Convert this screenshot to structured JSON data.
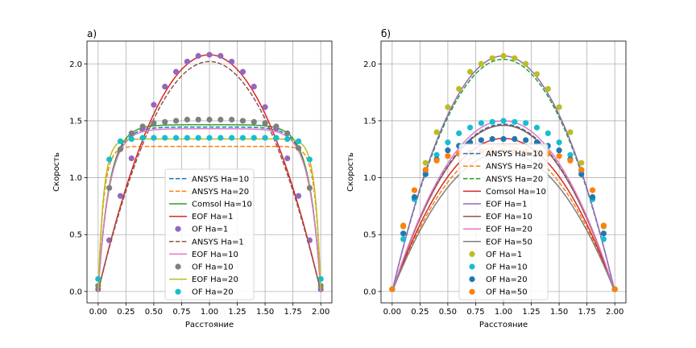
{
  "chart_data": [
    {
      "type": "line",
      "title": "а)",
      "xlabel": "Расстояние",
      "ylabel": "Скорость",
      "xlim": [
        -0.1,
        2.1
      ],
      "ylim": [
        -0.1,
        2.2
      ],
      "xticks": [
        0.0,
        0.25,
        0.5,
        0.75,
        1.0,
        1.25,
        1.5,
        1.75,
        2.0
      ],
      "xtick_labels": [
        "0.00",
        "0.25",
        "0.50",
        "0.75",
        "1.00",
        "1.25",
        "1.50",
        "1.75",
        "2.00"
      ],
      "yticks": [
        0.0,
        0.5,
        1.0,
        1.5,
        2.0
      ],
      "ytick_labels": [
        "0.0",
        "0.5",
        "1.0",
        "1.5",
        "2.0"
      ],
      "grid": true,
      "legend_position": "lower-center",
      "series": [
        {
          "name": "ANSYS Ha=10",
          "style": "dashed",
          "color": "#1f77b4",
          "profile": {
            "kind": "hartmann",
            "ha": 10,
            "umax": 1.445
          }
        },
        {
          "name": "ANSYS Ha=20",
          "style": "dashed",
          "color": "#ff7f0e",
          "profile": {
            "kind": "hartmann",
            "ha": 20,
            "umax": 1.275
          }
        },
        {
          "name": "Comsol Ha=10",
          "style": "solid",
          "color": "#2ca02c",
          "profile": {
            "kind": "hartmann",
            "ha": 10,
            "umax": 1.465
          }
        },
        {
          "name": "EOF Ha=1",
          "style": "solid",
          "color": "#d62728",
          "profile": {
            "kind": "parabola",
            "umax": 2.08
          }
        },
        {
          "name": "OF Ha=1",
          "style": "marker",
          "color": "#9467bd",
          "x": [
            0.0,
            0.1,
            0.2,
            0.3,
            0.4,
            0.5,
            0.6,
            0.7,
            0.8,
            0.9,
            1.0,
            1.1,
            1.2,
            1.3,
            1.4,
            1.5,
            1.6,
            1.7,
            1.8,
            1.9,
            2.0
          ],
          "y": [
            0.02,
            0.45,
            0.84,
            1.17,
            1.43,
            1.64,
            1.8,
            1.93,
            2.02,
            2.07,
            2.08,
            2.07,
            2.02,
            1.93,
            1.8,
            1.62,
            1.43,
            1.17,
            0.84,
            0.45,
            0.02
          ]
        },
        {
          "name": "ANSYS Ha=1",
          "style": "dashed",
          "color": "#8c564b",
          "profile": {
            "kind": "parabola",
            "umax": 2.02
          }
        },
        {
          "name": "EOF Ha=10",
          "style": "solid",
          "color": "#e377c2",
          "profile": {
            "kind": "hartmann",
            "ha": 10,
            "umax": 1.43
          }
        },
        {
          "name": "OF Ha=10",
          "style": "marker",
          "color": "#7f7f7f",
          "x": [
            0.0,
            0.1,
            0.2,
            0.3,
            0.4,
            0.5,
            0.6,
            0.7,
            0.8,
            0.9,
            1.0,
            1.1,
            1.2,
            1.3,
            1.4,
            1.5,
            1.6,
            1.7,
            1.8,
            1.9,
            2.0
          ],
          "y": [
            0.05,
            0.91,
            1.25,
            1.39,
            1.45,
            1.48,
            1.49,
            1.5,
            1.51,
            1.51,
            1.51,
            1.51,
            1.51,
            1.5,
            1.49,
            1.48,
            1.45,
            1.39,
            1.26,
            0.91,
            0.05
          ]
        },
        {
          "name": "EOF Ha=20",
          "style": "solid",
          "color": "#bcbd22",
          "profile": {
            "kind": "hartmann",
            "ha": 20,
            "umax": 1.34
          }
        },
        {
          "name": "OF Ha=20",
          "style": "marker",
          "color": "#17becf",
          "x": [
            0.0,
            0.1,
            0.2,
            0.3,
            0.4,
            0.5,
            0.6,
            0.7,
            0.8,
            0.9,
            1.0,
            1.1,
            1.2,
            1.3,
            1.4,
            1.5,
            1.6,
            1.7,
            1.8,
            1.9,
            2.0
          ],
          "y": [
            0.11,
            1.16,
            1.32,
            1.34,
            1.35,
            1.35,
            1.35,
            1.35,
            1.35,
            1.35,
            1.35,
            1.35,
            1.35,
            1.35,
            1.35,
            1.35,
            1.35,
            1.34,
            1.32,
            1.16,
            0.11
          ]
        }
      ]
    },
    {
      "type": "line",
      "title": "б)",
      "xlabel": "Расстояние",
      "ylabel": "Скорость",
      "xlim": [
        -0.1,
        2.1
      ],
      "ylim": [
        -0.1,
        2.2
      ],
      "xticks": [
        0.0,
        0.25,
        0.5,
        0.75,
        1.0,
        1.25,
        1.5,
        1.75,
        2.0
      ],
      "xtick_labels": [
        "0.00",
        "0.25",
        "0.50",
        "0.75",
        "1.00",
        "1.25",
        "1.50",
        "1.75",
        "2.00"
      ],
      "yticks": [
        0.0,
        0.5,
        1.0,
        1.5,
        2.0
      ],
      "ytick_labels": [
        "0.0",
        "0.5",
        "1.0",
        "1.5",
        "2.0"
      ],
      "grid": true,
      "legend_position": "lower-center",
      "series": [
        {
          "name": "ANSYS Ha=10",
          "style": "dashed",
          "color": "#1f77b4",
          "profile": {
            "kind": "parabola",
            "umax": 1.47
          }
        },
        {
          "name": "ANSYS Ha=20",
          "style": "dashed",
          "color": "#ff7f0e",
          "profile": {
            "kind": "parabola",
            "umax": 1.28
          }
        },
        {
          "name": "ANSYS Ha=20",
          "style": "dashed",
          "color": "#2ca02c",
          "profile": {
            "kind": "parabola",
            "umax": 2.04
          }
        },
        {
          "name": "Comsol Ha=10",
          "style": "solid",
          "color": "#d62728",
          "profile": {
            "kind": "parabola",
            "umax": 1.345
          }
        },
        {
          "name": "EOF Ha=1",
          "style": "solid",
          "color": "#9467bd",
          "profile": {
            "kind": "parabola",
            "umax": 2.07
          }
        },
        {
          "name": "EOF Ha=10",
          "style": "solid",
          "color": "#8c564b",
          "profile": {
            "kind": "parabola",
            "umax": 1.46
          }
        },
        {
          "name": "EOF Ha=20",
          "style": "solid",
          "color": "#e377c2",
          "profile": {
            "kind": "parabola",
            "umax": 1.5
          }
        },
        {
          "name": "EOF Ha=50",
          "style": "solid",
          "color": "#7f7f7f",
          "profile": {
            "kind": "parabola",
            "umax": 1.22
          }
        },
        {
          "name": "OF Ha=1",
          "style": "marker",
          "color": "#bcbd22",
          "x": [
            0.0,
            0.1,
            0.2,
            0.3,
            0.4,
            0.5,
            0.6,
            0.7,
            0.8,
            0.9,
            1.0,
            1.1,
            1.2,
            1.3,
            1.4,
            1.5,
            1.6,
            1.7,
            1.8,
            1.9,
            2.0
          ],
          "y": [
            0.02,
            0.57,
            0.89,
            1.13,
            1.4,
            1.62,
            1.78,
            1.93,
            2.0,
            2.05,
            2.07,
            2.05,
            2.0,
            1.91,
            1.78,
            1.62,
            1.4,
            1.13,
            0.89,
            0.57,
            0.02
          ]
        },
        {
          "name": "OF Ha=10",
          "style": "marker",
          "color": "#17becf",
          "x": [
            0.0,
            0.1,
            0.2,
            0.3,
            0.4,
            0.5,
            0.6,
            0.7,
            0.8,
            0.9,
            1.0,
            1.1,
            1.2,
            1.3,
            1.4,
            1.5,
            1.6,
            1.7,
            1.8,
            1.9,
            2.0
          ],
          "y": [
            0.02,
            0.46,
            0.81,
            1.06,
            1.2,
            1.31,
            1.39,
            1.44,
            1.48,
            1.49,
            1.5,
            1.49,
            1.48,
            1.44,
            1.39,
            1.31,
            1.2,
            1.06,
            0.81,
            0.46,
            0.02
          ]
        },
        {
          "name": "OF Ha=20",
          "style": "marker",
          "color": "#1f77b4",
          "x": [
            0.0,
            0.1,
            0.2,
            0.3,
            0.4,
            0.5,
            0.6,
            0.7,
            0.8,
            0.9,
            1.0,
            1.1,
            1.2,
            1.3,
            1.4,
            1.5,
            1.6,
            1.7,
            1.8,
            1.9,
            2.0
          ],
          "y": [
            0.02,
            0.51,
            0.83,
            1.03,
            1.16,
            1.24,
            1.28,
            1.31,
            1.33,
            1.34,
            1.34,
            1.34,
            1.33,
            1.31,
            1.28,
            1.24,
            1.16,
            1.03,
            0.83,
            0.51,
            0.02
          ]
        },
        {
          "name": "OF Ha=50",
          "style": "marker",
          "color": "#ff7f0e",
          "x": [
            0.0,
            0.1,
            0.2,
            0.3,
            0.4,
            0.5,
            0.6,
            0.7,
            0.8,
            0.9,
            1.0,
            1.1,
            1.2,
            1.3,
            1.4,
            1.5,
            1.6,
            1.7,
            1.8,
            1.9,
            2.0
          ],
          "y": [
            0.02,
            0.58,
            0.89,
            1.07,
            1.15,
            1.19,
            1.21,
            1.22,
            1.23,
            1.23,
            1.23,
            1.23,
            1.23,
            1.22,
            1.21,
            1.19,
            1.15,
            1.07,
            0.89,
            0.58,
            0.02
          ]
        }
      ]
    }
  ]
}
